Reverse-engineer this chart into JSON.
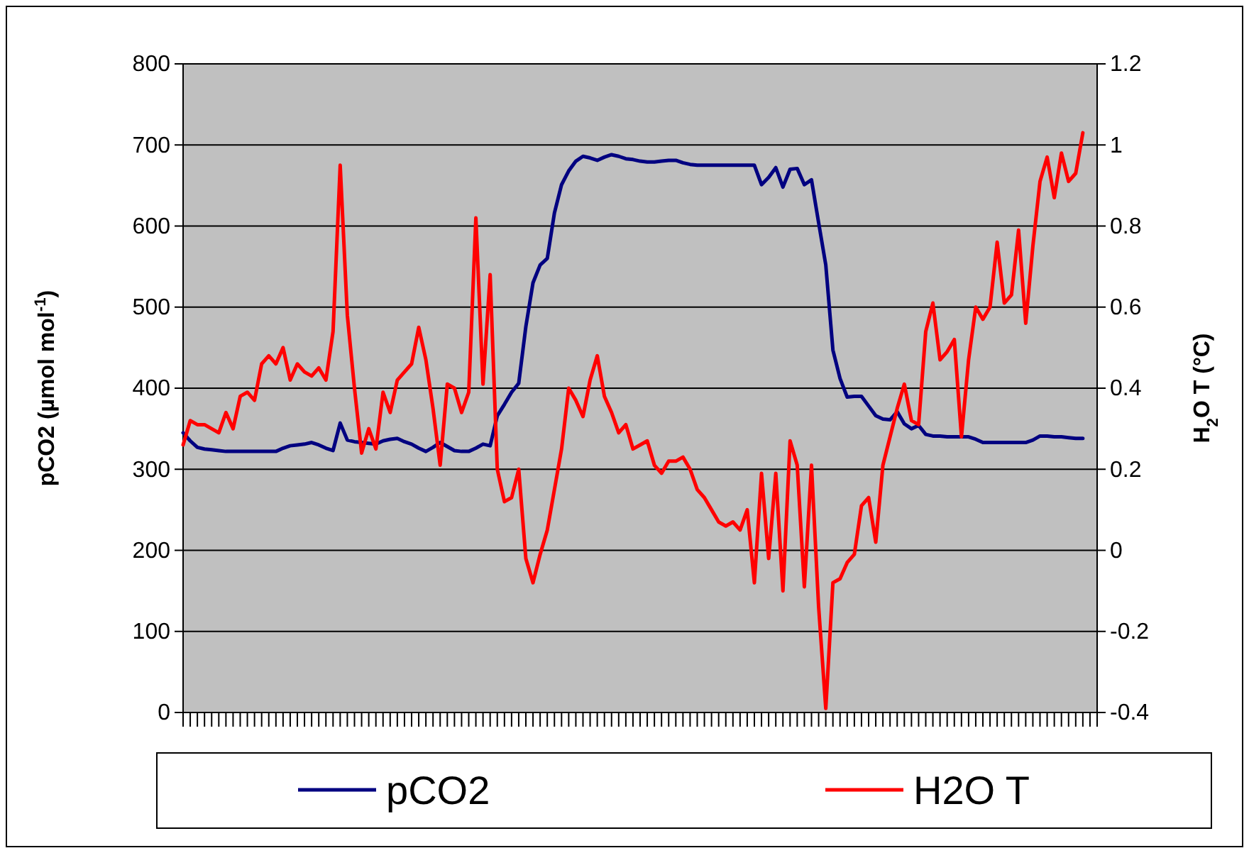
{
  "chart_data": {
    "type": "line",
    "ylabel": "pCO2 (µmol mol$^{-1}$)",
    "y2label": "H$_{2}$O T (°C)",
    "categories": [
      null,
      null,
      null,
      null,
      null,
      null,
      null,
      null,
      null,
      null,
      null,
      null,
      null,
      null,
      null,
      null,
      null,
      null,
      null,
      null,
      null,
      null,
      null,
      null,
      null,
      null,
      null,
      null,
      null,
      null,
      null,
      null,
      null,
      null,
      null,
      null,
      null,
      null,
      null,
      null,
      null,
      null,
      null,
      null,
      null,
      null,
      null,
      null,
      null,
      null,
      null,
      null,
      null,
      null,
      null,
      null,
      null,
      null,
      null,
      null,
      null,
      null,
      null,
      null,
      null,
      null,
      null,
      null,
      null,
      null,
      null,
      null,
      null,
      null,
      null,
      null,
      null,
      null,
      null,
      null,
      null,
      null,
      null,
      null,
      null,
      null,
      null,
      null,
      null,
      null,
      null,
      null,
      null,
      null,
      null,
      null,
      null,
      null,
      null,
      null,
      null,
      null,
      null,
      null,
      null,
      null,
      null,
      null,
      null,
      null,
      null,
      null,
      null,
      null,
      null,
      null,
      null,
      null,
      null,
      null,
      null,
      null,
      null,
      null,
      null,
      null,
      null,
      null,
      null
    ],
    "series": [
      {
        "name": "pCO2",
        "color": "#000080",
        "values": [
          345,
          335,
          327,
          325,
          324,
          323,
          322,
          322,
          322,
          322,
          322,
          322,
          322,
          322,
          326,
          329,
          330,
          331,
          333,
          330,
          326,
          323,
          357,
          336,
          334,
          333,
          332,
          331,
          335,
          337,
          338,
          334,
          331,
          326,
          322,
          327,
          333,
          328,
          323,
          322,
          322,
          326,
          331,
          329,
          366,
          380,
          395,
          406,
          476,
          530,
          552,
          560,
          616,
          651,
          668,
          680,
          686,
          684,
          681,
          685,
          688,
          686,
          683,
          682,
          680,
          679,
          679,
          680,
          681,
          681,
          678,
          676,
          675,
          675,
          675,
          675,
          675,
          675,
          675,
          675,
          675,
          651,
          660,
          672,
          648,
          670,
          671,
          651,
          657,
          604,
          552,
          447,
          412,
          389,
          390,
          390,
          378,
          366,
          362,
          361,
          371,
          356,
          350,
          354,
          343,
          341,
          341,
          340,
          340,
          340,
          340,
          337,
          333,
          333,
          333,
          333,
          333,
          333,
          333,
          336,
          341,
          341,
          340,
          340,
          339,
          338,
          338,
          null,
          null
        ]
      },
      {
        "name": "H2O T",
        "color": "#ff0000",
        "axis": "y2",
        "values": [
          0.26,
          0.32,
          0.31,
          0.31,
          0.3,
          0.29,
          0.34,
          0.3,
          0.38,
          0.39,
          0.37,
          0.46,
          0.48,
          0.46,
          0.5,
          0.42,
          0.46,
          0.44,
          0.43,
          0.45,
          0.42,
          0.54,
          0.95,
          0.58,
          0.4,
          0.24,
          0.3,
          0.25,
          0.39,
          0.34,
          0.42,
          0.44,
          0.46,
          0.55,
          0.47,
          0.35,
          0.21,
          0.41,
          0.4,
          0.34,
          0.39,
          0.82,
          0.41,
          0.68,
          0.2,
          0.12,
          0.13,
          0.2,
          -0.02,
          -0.08,
          -0.01,
          0.05,
          0.15,
          0.25,
          0.4,
          0.37,
          0.33,
          0.42,
          0.48,
          0.38,
          0.34,
          0.29,
          0.31,
          0.25,
          0.26,
          0.27,
          0.21,
          0.19,
          0.22,
          0.22,
          0.23,
          0.2,
          0.15,
          0.13,
          0.1,
          0.07,
          0.06,
          0.07,
          0.05,
          0.1,
          -0.08,
          0.19,
          -0.02,
          0.19,
          -0.1,
          0.27,
          0.21,
          -0.09,
          0.21,
          -0.14,
          -0.39,
          -0.08,
          -0.07,
          -0.03,
          -0.01,
          0.11,
          0.13,
          0.02,
          0.21,
          0.28,
          0.35,
          0.41,
          0.32,
          0.31,
          0.54,
          0.61,
          0.47,
          0.49,
          0.52,
          0.28,
          0.47,
          0.6,
          0.57,
          0.6,
          0.76,
          0.61,
          0.63,
          0.79,
          0.56,
          0.75,
          0.91,
          0.97,
          0.87,
          0.98,
          0.91,
          0.93,
          1.03,
          null,
          null
        ]
      }
    ],
    "ylim": [
      0,
      800
    ],
    "yticks": [
      0,
      100,
      200,
      300,
      400,
      500,
      600,
      700,
      800
    ],
    "y2lim": [
      -0.4,
      1.2
    ],
    "y2ticks": [
      -0.4,
      -0.2,
      0,
      0.2,
      0.4,
      0.6,
      0.8,
      1,
      1.2
    ],
    "grid": "y",
    "legend": "bottom"
  }
}
